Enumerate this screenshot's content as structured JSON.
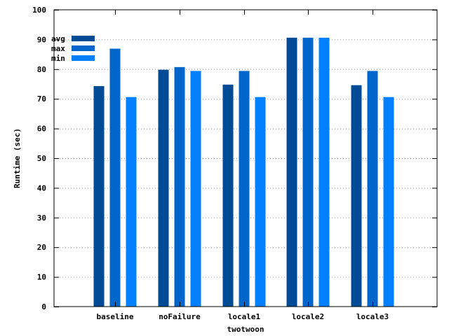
{
  "chart_data": {
    "type": "bar",
    "title": "",
    "xlabel": "twotwoon",
    "ylabel": "Runtime (sec)",
    "ylim": [
      0,
      100
    ],
    "yticks": [
      0,
      10,
      20,
      30,
      40,
      50,
      60,
      70,
      80,
      90,
      100
    ],
    "grid": true,
    "legend_position": "top-left",
    "categories": [
      "baseline",
      "noFailure",
      "locale1",
      "locale2",
      "locale3"
    ],
    "series": [
      {
        "name": "avg",
        "color": "#004a96",
        "values": [
          74.3,
          79.8,
          74.8,
          90.6,
          74.6
        ]
      },
      {
        "name": "max",
        "color": "#0066cc",
        "values": [
          86.9,
          80.7,
          79.4,
          90.6,
          79.4
        ]
      },
      {
        "name": "min",
        "color": "#0080ff",
        "values": [
          70.6,
          79.4,
          70.6,
          90.6,
          70.6
        ]
      }
    ]
  }
}
